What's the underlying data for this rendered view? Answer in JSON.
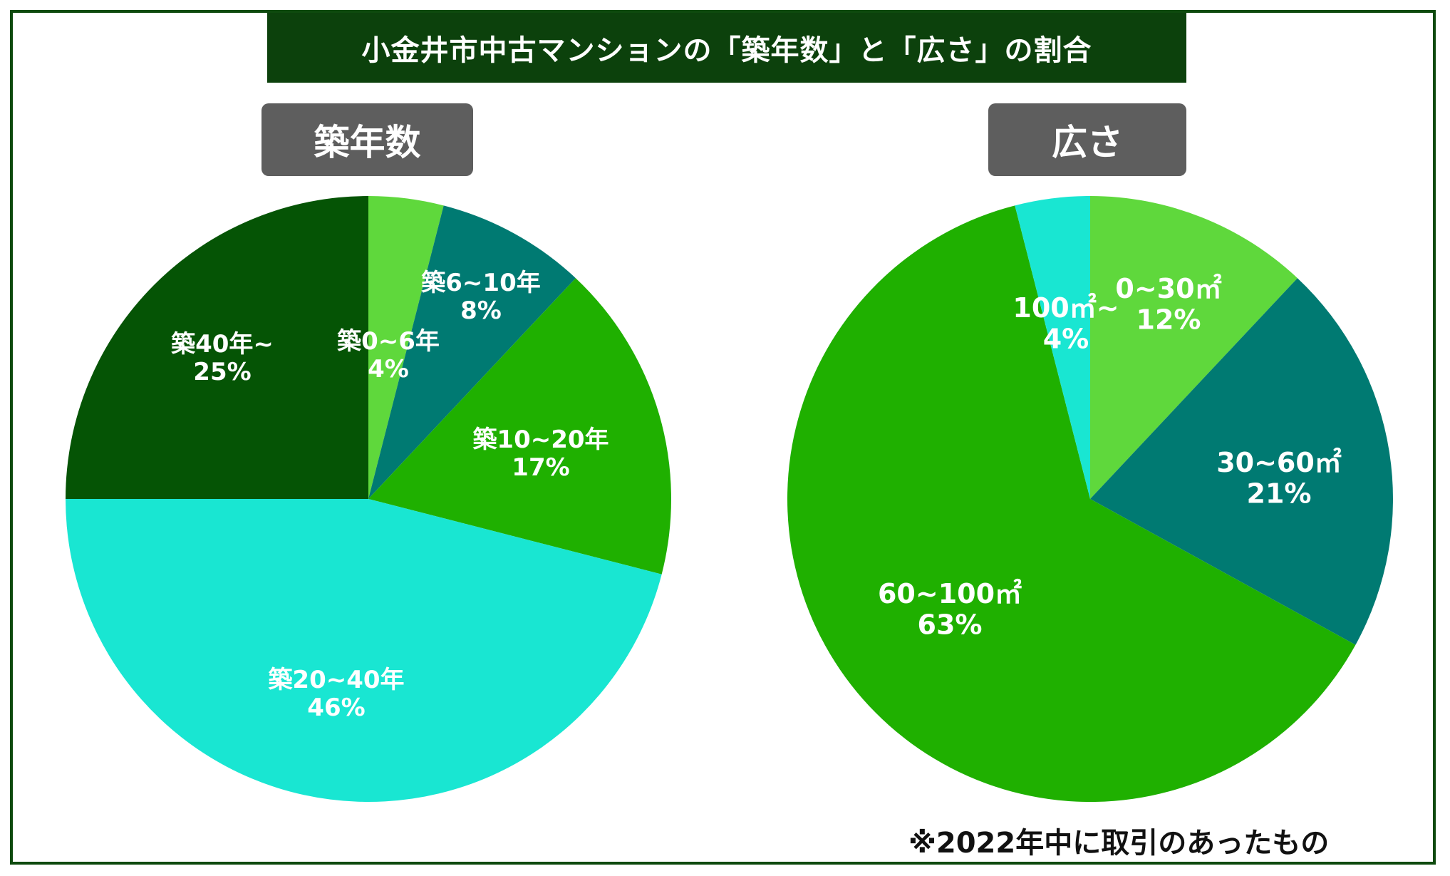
{
  "title": "小金井市中古マンションの「築年数」と「広さ」の割合",
  "footnote": "※2022年中に取引のあったもの",
  "chart_data": [
    {
      "type": "pie",
      "title": "築年数",
      "slices": [
        {
          "label": "築0~6年",
          "value": 4,
          "display": "4%",
          "color": "#5fd83c"
        },
        {
          "label": "築6~10年",
          "value": 8,
          "display": "8%",
          "color": "#007a72"
        },
        {
          "label": "築10~20年",
          "value": 17,
          "display": "17%",
          "color": "#1fb000"
        },
        {
          "label": "築20~40年",
          "value": 46,
          "display": "46%",
          "color": "#19e6d2"
        },
        {
          "label": "築40年~",
          "value": 25,
          "display": "25%",
          "color": "#055405"
        }
      ]
    },
    {
      "type": "pie",
      "title": "広さ",
      "slices": [
        {
          "label": "0~30㎡",
          "value": 12,
          "display": "12%",
          "color": "#5fd83c"
        },
        {
          "label": "30~60㎡",
          "value": 21,
          "display": "21%",
          "color": "#007a72"
        },
        {
          "label": "60~100㎡",
          "value": 63,
          "display": "63%",
          "color": "#1fb000"
        },
        {
          "label": "100㎡~",
          "value": 4,
          "display": "4%",
          "color": "#19e6d2"
        }
      ]
    }
  ]
}
